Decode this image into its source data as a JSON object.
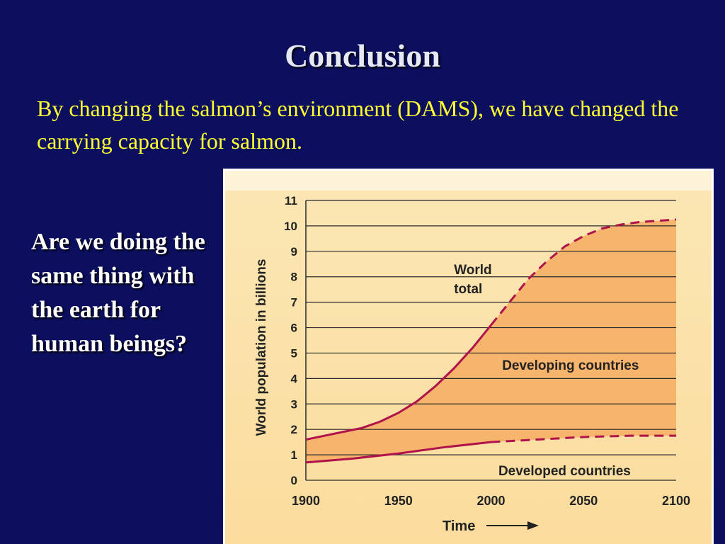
{
  "slide": {
    "title": "Conclusion",
    "subtitle": "By changing the salmon’s environment (DAMS), we have changed the carrying capacity for salmon.",
    "question": "Are we doing the same thing with the earth for human beings?"
  },
  "colors": {
    "background": "#0c0f5e",
    "subtitle_text": "#ffff33",
    "chart_panel": "#fbe3ab",
    "developing_fill": "#f6b46d",
    "curve": "#b0124a"
  },
  "chart_data": {
    "type": "area",
    "title": "",
    "xlabel": "Time",
    "ylabel": "World population in billions",
    "xlim": [
      1900,
      2100
    ],
    "ylim": [
      0,
      11
    ],
    "x_ticks": [
      1900,
      1950,
      2000,
      2050,
      2100
    ],
    "y_ticks": [
      0,
      1,
      2,
      3,
      4,
      5,
      6,
      7,
      8,
      9,
      10,
      11
    ],
    "grid": "horizontal",
    "projection_start": 2000,
    "series": [
      {
        "name": "World total",
        "x": [
          1900,
          1910,
          1920,
          1930,
          1940,
          1950,
          1960,
          1970,
          1980,
          1990,
          2000,
          2010,
          2020,
          2030,
          2040,
          2050,
          2060,
          2070,
          2080,
          2090,
          2100
        ],
        "values": [
          1.6,
          1.75,
          1.9,
          2.05,
          2.3,
          2.65,
          3.1,
          3.7,
          4.4,
          5.2,
          6.1,
          7.0,
          7.9,
          8.6,
          9.2,
          9.6,
          9.9,
          10.05,
          10.15,
          10.2,
          10.25
        ]
      },
      {
        "name": "Developed countries",
        "x": [
          1900,
          1925,
          1950,
          1975,
          2000,
          2025,
          2050,
          2075,
          2100
        ],
        "values": [
          0.7,
          0.85,
          1.05,
          1.3,
          1.5,
          1.6,
          1.7,
          1.75,
          1.75
        ]
      }
    ],
    "annotations": [
      "World\ntotal",
      "Developing countries",
      "Developed countries"
    ]
  }
}
